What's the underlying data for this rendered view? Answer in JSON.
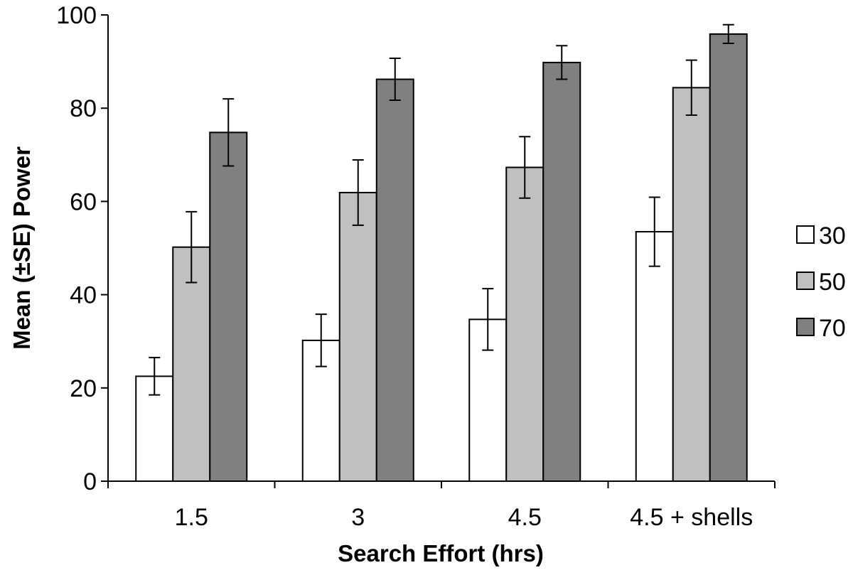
{
  "chart_data": {
    "type": "bar",
    "title": "",
    "xlabel": "Search Effort (hrs)",
    "ylabel": "Mean (±SE) Power",
    "categories": [
      "1.5",
      "3",
      "4.5",
      "4.5 + shells"
    ],
    "ylim": [
      0,
      100
    ],
    "yticks": [
      0,
      20,
      40,
      60,
      80,
      100
    ],
    "grid": false,
    "legend_position": "right",
    "series": [
      {
        "name": "30",
        "color": "#ffffff",
        "values": [
          22.5,
          30.2,
          34.7,
          53.5
        ],
        "errors": [
          4.0,
          5.6,
          6.6,
          7.4
        ]
      },
      {
        "name": "50",
        "color": "#c0c0c0",
        "values": [
          50.2,
          61.9,
          67.3,
          84.4
        ],
        "errors": [
          7.6,
          7.0,
          6.6,
          5.9
        ]
      },
      {
        "name": "70",
        "color": "#808080",
        "values": [
          74.8,
          86.2,
          89.8,
          95.9
        ],
        "errors": [
          7.2,
          4.5,
          3.6,
          2.0
        ]
      }
    ]
  }
}
